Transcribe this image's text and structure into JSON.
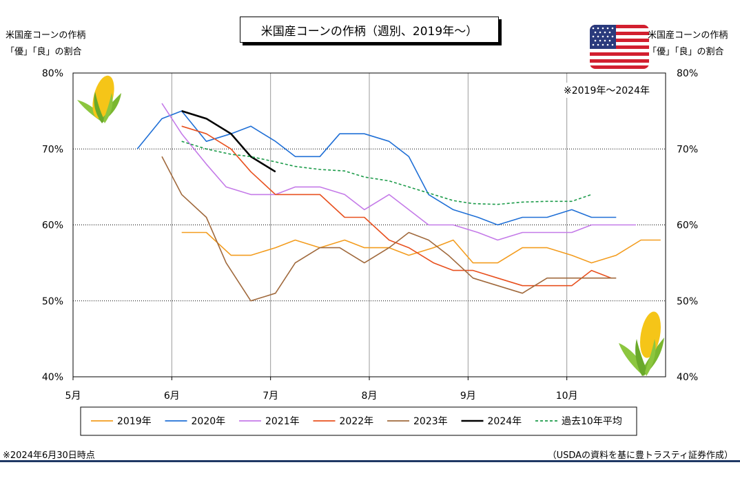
{
  "title": "米国産コーンの作柄（週別、2019年〜）",
  "left_axis_caption": [
    "米国産コーンの作柄",
    "「優」「良」の割合"
  ],
  "right_axis_caption": [
    "米国産コーンの作柄",
    "「優」「良」の割合"
  ],
  "period_note": "※2019年〜2024年",
  "footnote_left": "※2024年6月30日時点",
  "footnote_right": "（USDAの資料を基に豊トラスティ証券作成）",
  "chart_data": {
    "type": "line",
    "x_unit": "month",
    "xlim": [
      5,
      11
    ],
    "x_ticks": [
      5,
      6,
      7,
      8,
      9,
      10
    ],
    "x_tick_labels": [
      "5月",
      "6月",
      "7月",
      "8月",
      "9月",
      "10月"
    ],
    "ylim": [
      40,
      80
    ],
    "y_ticks": [
      40,
      50,
      60,
      70,
      80
    ],
    "y_tick_labels": [
      "40%",
      "50%",
      "60%",
      "70%",
      "80%"
    ],
    "grid": "dotted horizontal at 50/60/70, vertical at months",
    "legend_position": "bottom",
    "series": [
      {
        "name": "2019年",
        "color": "#f39c1e",
        "dash": false,
        "x": [
          6.1,
          6.35,
          6.6,
          6.8,
          7.05,
          7.25,
          7.5,
          7.75,
          7.95,
          8.2,
          8.4,
          8.65,
          8.85,
          9.05,
          9.3,
          9.55,
          9.8,
          10.05,
          10.25,
          10.5,
          10.75,
          10.95
        ],
        "y": [
          59,
          59,
          56,
          56,
          57,
          58,
          57,
          58,
          57,
          57,
          56,
          57,
          58,
          55,
          55,
          57,
          57,
          56,
          55,
          56,
          58,
          58
        ]
      },
      {
        "name": "2020年",
        "color": "#1f6fd6",
        "dash": false,
        "x": [
          5.65,
          5.9,
          6.1,
          6.35,
          6.6,
          6.8,
          7.05,
          7.25,
          7.5,
          7.7,
          7.95,
          8.2,
          8.4,
          8.6,
          8.85,
          9.1,
          9.3,
          9.55,
          9.8,
          10.05,
          10.25,
          10.5
        ],
        "y": [
          70,
          74,
          75,
          71,
          72,
          73,
          71,
          69,
          69,
          72,
          72,
          71,
          69,
          64,
          62,
          61,
          60,
          61,
          61,
          62,
          61,
          61
        ]
      },
      {
        "name": "2021年",
        "color": "#c47ae8",
        "dash": false,
        "x": [
          5.9,
          6.1,
          6.35,
          6.55,
          6.8,
          7.05,
          7.25,
          7.5,
          7.75,
          7.95,
          8.2,
          8.4,
          8.6,
          8.85,
          9.1,
          9.3,
          9.55,
          9.8,
          10.05,
          10.25,
          10.5,
          10.7
        ],
        "y": [
          76,
          72,
          68,
          65,
          64,
          64,
          65,
          65,
          64,
          62,
          64,
          62,
          60,
          60,
          59,
          58,
          59,
          59,
          59,
          60,
          60,
          60
        ]
      },
      {
        "name": "2022年",
        "color": "#e8501e",
        "dash": false,
        "x": [
          6.1,
          6.35,
          6.6,
          6.8,
          7.05,
          7.25,
          7.5,
          7.75,
          7.95,
          8.2,
          8.4,
          8.65,
          8.85,
          9.05,
          9.3,
          9.55,
          9.8,
          10.05,
          10.25,
          10.45
        ],
        "y": [
          73,
          72,
          70,
          67,
          64,
          64,
          64,
          61,
          61,
          58,
          57,
          55,
          54,
          54,
          53,
          52,
          52,
          52,
          54,
          53
        ]
      },
      {
        "name": "2023年",
        "color": "#a0693c",
        "dash": false,
        "x": [
          5.9,
          6.1,
          6.35,
          6.55,
          6.8,
          7.05,
          7.25,
          7.5,
          7.7,
          7.95,
          8.2,
          8.4,
          8.6,
          8.8,
          9.05,
          9.3,
          9.55,
          9.8,
          10.05,
          10.25,
          10.5
        ],
        "y": [
          69,
          64,
          61,
          55,
          50,
          51,
          55,
          57,
          57,
          55,
          57,
          59,
          58,
          56,
          53,
          52,
          51,
          53,
          53,
          53,
          53
        ]
      },
      {
        "name": "2024年",
        "color": "#000000",
        "dash": false,
        "x": [
          6.1,
          6.35,
          6.6,
          6.8,
          7.05
        ],
        "y": [
          75,
          74,
          72,
          69,
          67
        ]
      },
      {
        "name": "過去10年平均",
        "color": "#1a9a48",
        "dash": true,
        "x": [
          6.1,
          6.35,
          6.6,
          6.8,
          7.05,
          7.25,
          7.5,
          7.75,
          7.95,
          8.2,
          8.4,
          8.65,
          8.85,
          9.05,
          9.3,
          9.55,
          9.8,
          10.05,
          10.25
        ],
        "y": [
          71,
          70,
          69.3,
          69,
          68.3,
          67.7,
          67.3,
          67.1,
          66.3,
          65.8,
          65,
          64,
          63.2,
          62.8,
          62.7,
          63,
          63.1,
          63.1,
          64
        ]
      }
    ]
  }
}
